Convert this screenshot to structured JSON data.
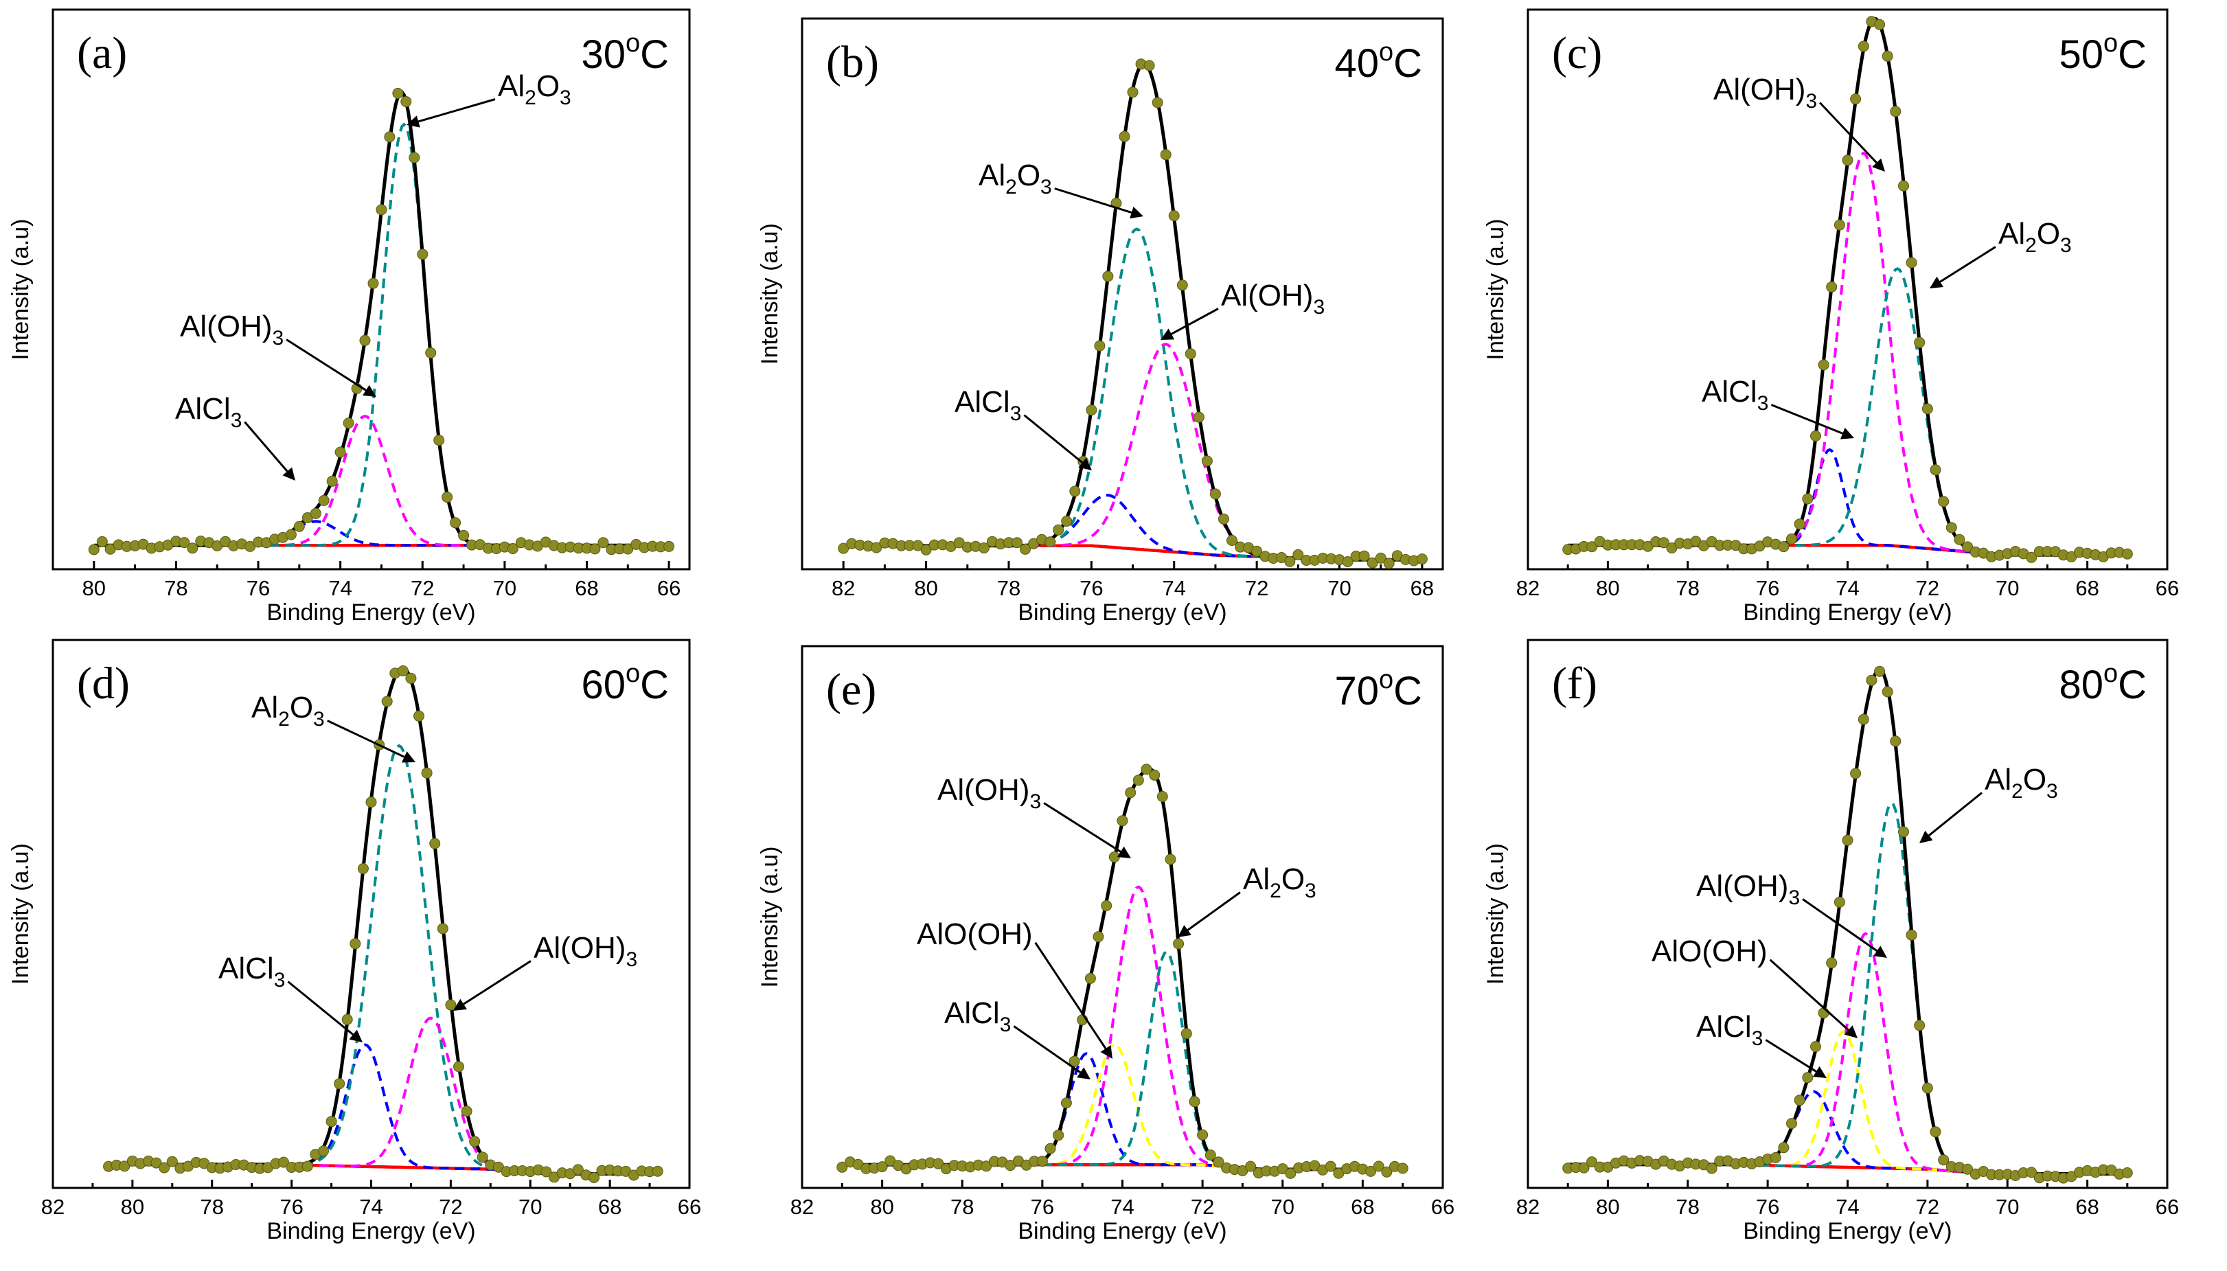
{
  "colors": {
    "points": "#8b8b24",
    "envelope": "#000000",
    "background": "#ff0000",
    "AlCl3": "#0000ff",
    "Al(OH)3": "#ff00ff",
    "Al2O3": "#008b8b",
    "AlO(OH)": "#ffff00"
  },
  "chart_data": [
    {
      "type": "line",
      "panel": "(a)",
      "temperature": {
        "value": "30",
        "sup": "o",
        "unit": "C"
      },
      "xlabel": "Binding Energy (eV)",
      "ylabel": "Intensity (a.u)",
      "xlim": [
        81,
        65.5
      ],
      "xticks": [
        80,
        78,
        76,
        74,
        72,
        70,
        68,
        66
      ],
      "ylim": [
        -0.05,
        1.12
      ],
      "x_points": [
        80,
        66,
        0.2
      ],
      "background": [
        [
          76.5,
          0.0
        ],
        [
          70,
          0.0
        ]
      ],
      "components": [
        {
          "name": "AlCl3",
          "label": {
            "main": "AlCl",
            "sub": "3"
          },
          "center": 74.6,
          "height": 0.05,
          "width": 1.3
        },
        {
          "name": "Al(OH)3",
          "label": {
            "main": "Al(OH)",
            "sub": "3"
          },
          "center": 73.4,
          "height": 0.27,
          "width": 1.3
        },
        {
          "name": "Al2O3",
          "label": {
            "main": "Al",
            "sub": "2",
            "main2": "O",
            "sub2": "3"
          },
          "center": 72.45,
          "height": 0.88,
          "width": 1.2
        }
      ]
    },
    {
      "type": "line",
      "panel": "(b)",
      "temperature": {
        "value": "40",
        "sup": "o",
        "unit": "C"
      },
      "xlabel": "Binding Energy (eV)",
      "ylabel": "Intensity (a.u)",
      "xlim": [
        83,
        67.5
      ],
      "xticks": [
        82,
        80,
        78,
        76,
        74,
        72,
        70,
        68
      ],
      "ylim": [
        -0.05,
        1.12
      ],
      "x_points": [
        82,
        68,
        0.2
      ],
      "background": [
        [
          79,
          0.0
        ],
        [
          76,
          0.0
        ],
        [
          73,
          -0.02
        ],
        [
          70,
          -0.03
        ]
      ],
      "components": [
        {
          "name": "AlCl3",
          "label": {
            "main": "AlCl",
            "sub": "3"
          },
          "center": 75.6,
          "height": 0.11,
          "width": 1.4
        },
        {
          "name": "Al2O3",
          "label": {
            "main": "Al",
            "sub": "2",
            "main2": "O",
            "sub2": "3"
          },
          "center": 74.9,
          "height": 0.68,
          "width": 1.6
        },
        {
          "name": "Al(OH)3",
          "label": {
            "main": "Al(OH)",
            "sub": "3"
          },
          "center": 74.2,
          "height": 0.44,
          "width": 1.7
        }
      ]
    },
    {
      "type": "line",
      "panel": "(c)",
      "temperature": {
        "value": "50",
        "sup": "o",
        "unit": "C"
      },
      "xlabel": "Binding Energy (eV)",
      "ylabel": "Intensity (a.u)",
      "xlim": [
        82,
        66
      ],
      "xticks": [
        82,
        80,
        78,
        76,
        74,
        72,
        70,
        68,
        66
      ],
      "ylim": [
        -0.05,
        1.12
      ],
      "x_points": [
        81,
        67,
        0.2
      ],
      "background": [
        [
          76.5,
          0.0
        ],
        [
          73,
          0.0
        ],
        [
          70,
          -0.02
        ]
      ],
      "components": [
        {
          "name": "AlCl3",
          "label": {
            "main": "AlCl",
            "sub": "3"
          },
          "center": 74.45,
          "height": 0.2,
          "width": 0.8
        },
        {
          "name": "Al(OH)3",
          "label": {
            "main": "Al(OH)",
            "sub": "3"
          },
          "center": 73.6,
          "height": 0.82,
          "width": 1.4
        },
        {
          "name": "Al2O3",
          "label": {
            "main": "Al",
            "sub": "2",
            "main2": "O",
            "sub2": "3"
          },
          "center": 72.75,
          "height": 0.58,
          "width": 1.4
        }
      ]
    },
    {
      "type": "line",
      "panel": "(d)",
      "temperature": {
        "value": "60",
        "sup": "o",
        "unit": "C"
      },
      "xlabel": "Binding Energy (eV)",
      "ylabel": "Intensity (a.u)",
      "xlim": [
        82,
        66
      ],
      "xticks": [
        82,
        80,
        78,
        76,
        74,
        72,
        70,
        68,
        66
      ],
      "ylim": [
        -0.05,
        1.12
      ],
      "x_points": [
        80.6,
        66.8,
        0.2
      ],
      "background": [
        [
          76.5,
          0.0
        ],
        [
          71,
          -0.01
        ],
        [
          69.5,
          -0.02
        ]
      ],
      "components": [
        {
          "name": "AlCl3",
          "label": {
            "main": "AlCl",
            "sub": "3"
          },
          "center": 74.15,
          "height": 0.26,
          "width": 1.1
        },
        {
          "name": "Al2O3",
          "label": {
            "main": "Al",
            "sub": "2",
            "main2": "O",
            "sub2": "3"
          },
          "center": 73.3,
          "height": 0.9,
          "width": 1.6
        },
        {
          "name": "Al(OH)3",
          "label": {
            "main": "Al(OH)",
            "sub": "3"
          },
          "center": 72.5,
          "height": 0.32,
          "width": 1.3
        }
      ]
    },
    {
      "type": "line",
      "panel": "(e)",
      "temperature": {
        "value": "70",
        "sup": "o",
        "unit": "C"
      },
      "xlabel": "Binding Energy (eV)",
      "ylabel": "Intensity (a.u)",
      "xlim": [
        82,
        66
      ],
      "xticks": [
        82,
        80,
        78,
        76,
        74,
        72,
        70,
        68,
        66
      ],
      "ylim": [
        -0.05,
        1.12
      ],
      "x_points": [
        81,
        67,
        0.2
      ],
      "background": [
        [
          76.8,
          0.0
        ],
        [
          72,
          0.0
        ],
        [
          70.5,
          -0.01
        ]
      ],
      "components": [
        {
          "name": "AlCl3",
          "label": {
            "main": "AlCl",
            "sub": "3"
          },
          "center": 74.9,
          "height": 0.24,
          "width": 1.0
        },
        {
          "name": "AlO(OH)",
          "label": {
            "main": "AlO(OH)",
            "sub": ""
          },
          "center": 74.2,
          "height": 0.26,
          "width": 1.1
        },
        {
          "name": "Al(OH)3",
          "label": {
            "main": "Al(OH)",
            "sub": "3"
          },
          "center": 73.6,
          "height": 0.6,
          "width": 1.3
        },
        {
          "name": "Al2O3",
          "label": {
            "main": "Al",
            "sub": "2",
            "main2": "O",
            "sub2": "3"
          },
          "center": 72.9,
          "height": 0.46,
          "width": 1.0
        }
      ]
    },
    {
      "type": "line",
      "panel": "(f)",
      "temperature": {
        "value": "80",
        "sup": "o",
        "unit": "C"
      },
      "xlabel": "Binding Energy (eV)",
      "ylabel": "Intensity (a.u)",
      "xlim": [
        82,
        66
      ],
      "xticks": [
        82,
        80,
        78,
        76,
        74,
        72,
        70,
        68,
        66
      ],
      "ylim": [
        -0.05,
        1.12
      ],
      "x_points": [
        81,
        67,
        0.2
      ],
      "background": [
        [
          77,
          0.0
        ],
        [
          72,
          -0.01
        ],
        [
          70.5,
          -0.02
        ]
      ],
      "components": [
        {
          "name": "AlCl3",
          "label": {
            "main": "AlCl",
            "sub": "3"
          },
          "center": 74.85,
          "height": 0.16,
          "width": 1.1
        },
        {
          "name": "AlO(OH)",
          "label": {
            "main": "AlO(OH)",
            "sub": ""
          },
          "center": 74.1,
          "height": 0.29,
          "width": 1.0
        },
        {
          "name": "Al(OH)3",
          "label": {
            "main": "Al(OH)",
            "sub": "3"
          },
          "center": 73.55,
          "height": 0.5,
          "width": 1.1
        },
        {
          "name": "Al2O3",
          "label": {
            "main": "Al",
            "sub": "2",
            "main2": "O",
            "sub2": "3"
          },
          "center": 72.9,
          "height": 0.78,
          "width": 1.2
        }
      ]
    }
  ]
}
